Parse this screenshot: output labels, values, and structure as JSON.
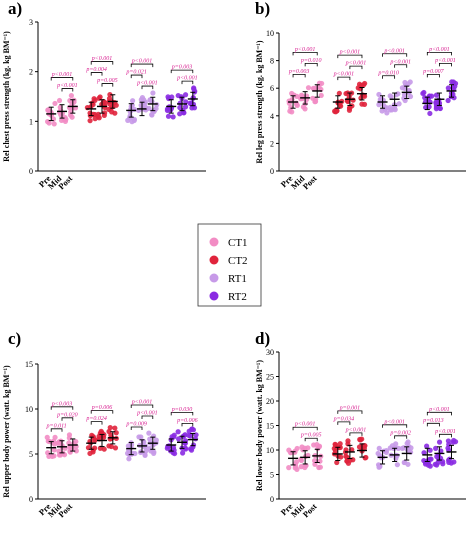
{
  "legend": [
    {
      "label": "CT1",
      "color": "#f28cc4"
    },
    {
      "label": "CT2",
      "color": "#e0243c"
    },
    {
      "label": "RT1",
      "color": "#c79ae8"
    },
    {
      "label": "RT2",
      "color": "#8a2be2"
    }
  ],
  "chart_data": [
    {
      "panel_label": "a)",
      "type": "scatter",
      "ylabel": "Rel chest press strength (kg. kg BM⁻¹)",
      "ylim": [
        0,
        3
      ],
      "yticks": [
        "0",
        "1",
        "2",
        "3"
      ],
      "categories": [
        "Pre",
        "Mid",
        "Post"
      ],
      "series": [
        {
          "name": "CT1",
          "means": [
            1.15,
            1.2,
            1.3
          ]
        },
        {
          "name": "CT2",
          "means": [
            1.25,
            1.3,
            1.4
          ]
        },
        {
          "name": "RT1",
          "means": [
            1.22,
            1.25,
            1.35
          ]
        },
        {
          "name": "RT2",
          "means": [
            1.3,
            1.35,
            1.45
          ]
        }
      ],
      "pvalues": [
        {
          "group": "CT1",
          "from": 0,
          "to": 2,
          "text": "p<0.001"
        },
        {
          "group": "CT1",
          "from": 1,
          "to": 2,
          "text": "p<0.001"
        },
        {
          "group": "CT2",
          "from": 0,
          "to": 2,
          "text": "p<0.001"
        },
        {
          "group": "CT2",
          "from": 0,
          "to": 1,
          "text": "p=0.004"
        },
        {
          "group": "CT2",
          "from": 1,
          "to": 2,
          "text": "p=0.005"
        },
        {
          "group": "RT1",
          "from": 0,
          "to": 2,
          "text": "p<0.001"
        },
        {
          "group": "RT1",
          "from": 0,
          "to": 1,
          "text": "p=0.021"
        },
        {
          "group": "RT1",
          "from": 1,
          "to": 2,
          "text": "p<0.001"
        },
        {
          "group": "RT2",
          "from": 0,
          "to": 2,
          "text": "p=0.003"
        },
        {
          "group": "RT2",
          "from": 1,
          "to": 2,
          "text": "p<0.001"
        }
      ]
    },
    {
      "panel_label": "b)",
      "type": "scatter",
      "ylabel": "Rel leg press strength (kg. kg BM⁻¹)",
      "ylim": [
        0,
        10
      ],
      "yticks": [
        "0",
        "2",
        "4",
        "6",
        "8",
        "10"
      ],
      "categories": [
        "Pre",
        "Mid",
        "Post"
      ],
      "series": [
        {
          "name": "CT1",
          "means": [
            5.0,
            5.3,
            5.8
          ]
        },
        {
          "name": "CT2",
          "means": [
            5.0,
            5.2,
            5.6
          ]
        },
        {
          "name": "RT1",
          "means": [
            5.0,
            5.2,
            5.7
          ]
        },
        {
          "name": "RT2",
          "means": [
            4.9,
            5.2,
            5.8
          ]
        }
      ],
      "pvalues": [
        {
          "group": "CT1",
          "from": 0,
          "to": 2,
          "text": "p<0.001"
        },
        {
          "group": "CT1",
          "from": 1,
          "to": 2,
          "text": "p=0.010"
        },
        {
          "group": "CT1",
          "from": 0,
          "to": 1,
          "text": "p=0.003"
        },
        {
          "group": "CT2",
          "from": 0,
          "to": 2,
          "text": "p<0.001"
        },
        {
          "group": "CT2",
          "from": 1,
          "to": 2,
          "text": "p<0.001"
        },
        {
          "group": "CT2",
          "from": 0,
          "to": 1,
          "text": "p<0.001"
        },
        {
          "group": "RT1",
          "from": 0,
          "to": 2,
          "text": "p<0.001"
        },
        {
          "group": "RT1",
          "from": 1,
          "to": 2,
          "text": "p<0.001"
        },
        {
          "group": "RT1",
          "from": 0,
          "to": 1,
          "text": "p=0.010"
        },
        {
          "group": "RT2",
          "from": 0,
          "to": 2,
          "text": "p<0.001"
        },
        {
          "group": "RT2",
          "from": 1,
          "to": 2,
          "text": "p<0.001"
        },
        {
          "group": "RT2",
          "from": 0,
          "to": 1,
          "text": "p=0.007"
        }
      ]
    },
    {
      "panel_label": "c)",
      "type": "scatter",
      "ylabel": "Rel upper body power (watt. kg BM⁻¹)",
      "ylim": [
        0,
        15
      ],
      "yticks": [
        "0",
        "5",
        "10",
        "15"
      ],
      "categories": [
        "Pre",
        "Mid",
        "Post"
      ],
      "series": [
        {
          "name": "CT1",
          "means": [
            5.7,
            5.8,
            6.0
          ]
        },
        {
          "name": "CT2",
          "means": [
            6.2,
            6.5,
            6.8
          ]
        },
        {
          "name": "RT1",
          "means": [
            5.6,
            5.9,
            6.2
          ]
        },
        {
          "name": "RT2",
          "means": [
            6.0,
            6.3,
            6.6
          ]
        }
      ],
      "pvalues": [
        {
          "group": "CT1",
          "from": 0,
          "to": 2,
          "text": "p<0.003"
        },
        {
          "group": "CT1",
          "from": 1,
          "to": 2,
          "text": "p=0.020"
        },
        {
          "group": "CT1",
          "from": 0,
          "to": 1,
          "text": "p=0.011"
        },
        {
          "group": "CT2",
          "from": 0,
          "to": 2,
          "text": "p=0.006"
        },
        {
          "group": "CT2",
          "from": 0,
          "to": 1,
          "text": "p=0.024"
        },
        {
          "group": "RT1",
          "from": 0,
          "to": 2,
          "text": "p<0.001"
        },
        {
          "group": "RT1",
          "from": 1,
          "to": 2,
          "text": "p<0.001"
        },
        {
          "group": "RT1",
          "from": 0,
          "to": 1,
          "text": "p=0.009"
        },
        {
          "group": "RT2",
          "from": 0,
          "to": 2,
          "text": "p=0.030"
        },
        {
          "group": "RT2",
          "from": 1,
          "to": 2,
          "text": "p=0.006"
        }
      ]
    },
    {
      "panel_label": "d)",
      "type": "scatter",
      "ylabel": "Rel lower body power (watt. kg BM⁻¹)",
      "ylim": [
        0,
        30
      ],
      "yticks": [
        "0",
        "5",
        "10",
        "15",
        "20",
        "25",
        "30"
      ],
      "categories": [
        "Pre",
        "Mid",
        "Post"
      ],
      "series": [
        {
          "name": "CT1",
          "means": [
            8.3,
            8.5,
            8.8
          ]
        },
        {
          "name": "CT2",
          "means": [
            9.2,
            9.6,
            9.9
          ]
        },
        {
          "name": "RT1",
          "means": [
            8.5,
            9.0,
            9.3
          ]
        },
        {
          "name": "RT2",
          "means": [
            9.0,
            9.3,
            9.6
          ]
        }
      ],
      "pvalues": [
        {
          "group": "CT1",
          "from": 0,
          "to": 2,
          "text": "p<0.001"
        },
        {
          "group": "CT1",
          "from": 1,
          "to": 2,
          "text": "p=0.005"
        },
        {
          "group": "CT2",
          "from": 0,
          "to": 2,
          "text": "p=0.001"
        },
        {
          "group": "CT2",
          "from": 0,
          "to": 1,
          "text": "p=0.034"
        },
        {
          "group": "CT2",
          "from": 1,
          "to": 2,
          "text": "p<0.001"
        },
        {
          "group": "RT1",
          "from": 0,
          "to": 2,
          "text": "p<0.001"
        },
        {
          "group": "RT1",
          "from": 1,
          "to": 2,
          "text": "p=0.002"
        },
        {
          "group": "RT2",
          "from": 0,
          "to": 2,
          "text": "p<0.001"
        },
        {
          "group": "RT2",
          "from": 0,
          "to": 1,
          "text": "p=0.013"
        },
        {
          "group": "RT2",
          "from": 1,
          "to": 2,
          "text": "p<0.001"
        }
      ]
    }
  ]
}
